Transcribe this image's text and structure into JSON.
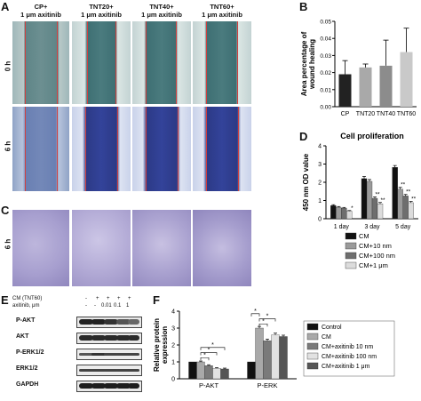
{
  "panel_labels": {
    "a": "A",
    "b": "B",
    "c": "C",
    "d": "D",
    "e": "E",
    "f": "F"
  },
  "panel_a": {
    "columns": [
      {
        "line1": "CP+",
        "line2": "1 μm axitinib"
      },
      {
        "line1": "TNT20+",
        "line2": "1 μm axitinib"
      },
      {
        "line1": "TNT40+",
        "line2": "1 μm axitinib"
      },
      {
        "line1": "TNT60+",
        "line2": "1 μm axitinib"
      }
    ],
    "rows": [
      "0 h",
      "6 h"
    ]
  },
  "panel_c": {
    "rows": [
      "6 h"
    ]
  },
  "panel_e": {
    "header_rows": [
      {
        "label": "CM (TNT60)",
        "values": [
          "-",
          "+",
          "+",
          "+",
          "+"
        ]
      },
      {
        "label": "axitinib, μm",
        "values": [
          "-",
          "-",
          "0.01",
          "0.1",
          "1"
        ]
      }
    ],
    "blots": [
      "P-AKT",
      "AKT",
      "P-ERK1/2",
      "ERK1/2",
      "GAPDH"
    ]
  },
  "chart_data": [
    {
      "panel": "B",
      "type": "bar",
      "categories": [
        "CP",
        "TNT20",
        "TNT40",
        "TNT60"
      ],
      "values": [
        0.019,
        0.023,
        0.024,
        0.032
      ],
      "errors": [
        0.008,
        0.002,
        0.015,
        0.014
      ],
      "ylabel": "Area percentage of wound healing",
      "ylim": [
        0,
        0.05
      ],
      "yticks": [
        "0.00",
        "0.01",
        "0.02",
        "0.03",
        "0.04",
        "0.05"
      ],
      "colors": [
        "#222222",
        "#a9a9a9",
        "#8c8c8c",
        "#c9c9c9"
      ]
    },
    {
      "panel": "D",
      "type": "bar",
      "title": "Cell proliferation",
      "ylabel": "450 nm OD value",
      "ylim": [
        0,
        4
      ],
      "yticks": [
        "0",
        "1",
        "2",
        "3",
        "4"
      ],
      "categories": [
        "1 day",
        "3 day",
        "5 day"
      ],
      "series": [
        {
          "name": "CM",
          "values": [
            0.72,
            2.2,
            2.82
          ],
          "errors": [
            0.05,
            0.12,
            0.1
          ],
          "color": "#111111"
        },
        {
          "name": "CM+10 nm",
          "values": [
            0.63,
            2.05,
            1.62
          ],
          "errors": [
            0.04,
            0.1,
            0.1
          ],
          "color": "#9a9a9a"
        },
        {
          "name": "CM+100 nm",
          "values": [
            0.58,
            1.12,
            1.25
          ],
          "errors": [
            0.04,
            0.08,
            0.08
          ],
          "color": "#6e6e6e"
        },
        {
          "name": "CM+1 μm",
          "values": [
            0.42,
            0.82,
            0.88
          ],
          "errors": [
            0.03,
            0.07,
            0.07
          ],
          "color": "#dcdcdc"
        }
      ],
      "annotations": [
        {
          "category": "1 day",
          "series": "CM+1 μm",
          "text": "*"
        },
        {
          "category": "3 day",
          "series": "CM+100 nm",
          "text": "**"
        },
        {
          "category": "3 day",
          "series": "CM+1 μm",
          "text": "**"
        },
        {
          "category": "5 day",
          "series": "CM+10 nm",
          "text": "**"
        },
        {
          "category": "5 day",
          "series": "CM+100 nm",
          "text": "**"
        },
        {
          "category": "5 day",
          "series": "CM+1 μm",
          "text": "**"
        }
      ],
      "legend_position": "below"
    },
    {
      "panel": "F",
      "type": "bar",
      "ylabel": "Relative protein expression",
      "ylim": [
        0,
        4
      ],
      "yticks": [
        "0",
        "1",
        "2",
        "3",
        "4"
      ],
      "categories": [
        "P-AKT",
        "P-ERK"
      ],
      "series": [
        {
          "name": "Control",
          "values": [
            1.0,
            1.0
          ],
          "errors": [
            0,
            0
          ],
          "color": "#111111"
        },
        {
          "name": "CM",
          "values": [
            1.0,
            3.0
          ],
          "errors": [
            0.05,
            0.1
          ],
          "color": "#a9a9a9"
        },
        {
          "name": "CM+axitinib 10 nm",
          "values": [
            0.78,
            2.25
          ],
          "errors": [
            0.05,
            0.1
          ],
          "color": "#7a7a7a"
        },
        {
          "name": "CM+axitinib 100 nm",
          "values": [
            0.62,
            2.6
          ],
          "errors": [
            0.04,
            0.1
          ],
          "color": "#e2e2e2"
        },
        {
          "name": "CM+axitinib 1 μm",
          "values": [
            0.58,
            2.5
          ],
          "errors": [
            0.05,
            0.08
          ],
          "color": "#555555"
        }
      ],
      "significance": [
        "*",
        "*",
        "*",
        "*",
        "*",
        "*"
      ],
      "legend_position": "right"
    }
  ]
}
